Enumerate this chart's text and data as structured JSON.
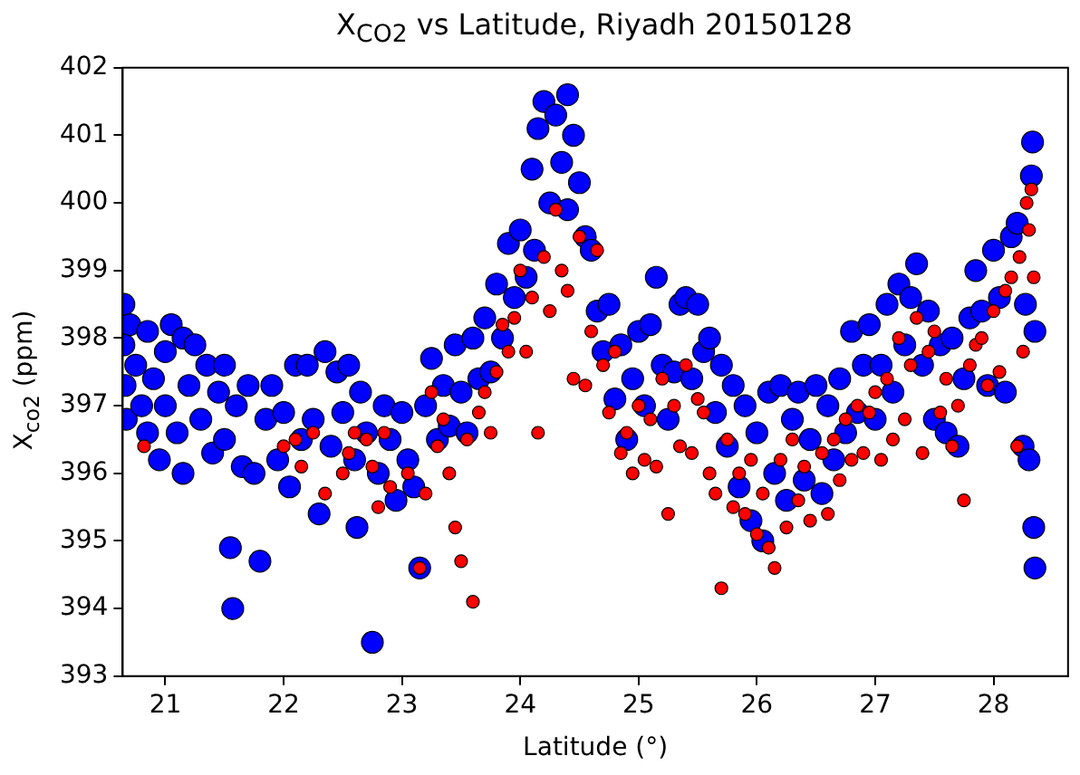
{
  "chart_data": {
    "type": "scatter",
    "title": "X$_{CO2}$ vs Latitude, Riyadh 20150128",
    "xlabel": "Latitude (°)",
    "ylabel": "X$_{co2}$ (ppm)",
    "xlim": [
      20.64,
      28.63
    ],
    "xticks": [
      21,
      22,
      23,
      24,
      25,
      26,
      27,
      28
    ],
    "ylim": [
      393,
      402
    ],
    "yticks": [
      393,
      394,
      395,
      396,
      397,
      398,
      399,
      400,
      401,
      402
    ],
    "marker": "circle",
    "legend": false,
    "series": [
      {
        "color": "#0000ff",
        "x": [
          20.65,
          20.65,
          20.66,
          20.67,
          20.7,
          20.75,
          20.8,
          20.85,
          20.85,
          20.9,
          20.95,
          21.0,
          21.0,
          21.05,
          21.1,
          21.15,
          21.15,
          21.2,
          21.25,
          21.3,
          21.35,
          21.4,
          21.45,
          21.5,
          21.5,
          21.55,
          21.57,
          21.6,
          21.65,
          21.7,
          21.75,
          21.8,
          21.85,
          21.9,
          21.95,
          22.0,
          22.05,
          22.1,
          22.15,
          22.2,
          22.25,
          22.3,
          22.35,
          22.4,
          22.45,
          22.5,
          22.55,
          22.6,
          22.62,
          22.65,
          22.7,
          22.75,
          22.8,
          22.85,
          22.9,
          22.95,
          23.0,
          23.05,
          23.1,
          23.15,
          23.2,
          23.25,
          23.3,
          23.35,
          23.4,
          23.45,
          23.5,
          23.55,
          23.6,
          23.65,
          23.7,
          23.75,
          23.8,
          23.85,
          23.9,
          23.95,
          24.0,
          24.05,
          24.1,
          24.12,
          24.15,
          24.2,
          24.25,
          24.3,
          24.35,
          24.4,
          24.4,
          24.45,
          24.5,
          24.55,
          24.6,
          24.65,
          24.7,
          24.75,
          24.8,
          24.85,
          24.9,
          24.95,
          25.0,
          25.05,
          25.1,
          25.15,
          25.2,
          25.25,
          25.3,
          25.35,
          25.4,
          25.45,
          25.5,
          25.55,
          25.6,
          25.65,
          25.7,
          25.75,
          25.8,
          25.85,
          25.9,
          25.95,
          26.0,
          26.05,
          26.1,
          26.15,
          26.2,
          26.25,
          26.3,
          26.35,
          26.4,
          26.45,
          26.5,
          26.55,
          26.6,
          26.65,
          26.7,
          26.75,
          26.8,
          26.85,
          26.9,
          26.95,
          27.0,
          27.05,
          27.1,
          27.15,
          27.2,
          27.25,
          27.3,
          27.35,
          27.4,
          27.45,
          27.5,
          27.55,
          27.6,
          27.65,
          27.7,
          27.75,
          27.8,
          27.85,
          27.9,
          27.95,
          28.0,
          28.05,
          28.1,
          28.15,
          28.2,
          28.25,
          28.27,
          28.3,
          28.32,
          28.33,
          28.34,
          28.35,
          28.35
        ],
        "values": [
          398.5,
          397.9,
          397.3,
          396.8,
          398.2,
          397.6,
          397.0,
          396.6,
          398.1,
          397.4,
          396.2,
          397.8,
          397.0,
          398.2,
          396.6,
          398.0,
          396.0,
          397.3,
          397.9,
          396.8,
          397.6,
          396.3,
          397.2,
          397.6,
          396.5,
          394.9,
          394.0,
          397.0,
          396.1,
          397.3,
          396.0,
          394.7,
          396.8,
          397.3,
          396.2,
          396.9,
          395.8,
          397.6,
          396.5,
          397.6,
          396.8,
          395.4,
          397.8,
          396.4,
          397.5,
          396.9,
          397.6,
          396.2,
          395.2,
          397.2,
          396.6,
          393.5,
          396.0,
          397.0,
          396.5,
          395.6,
          396.9,
          396.2,
          395.8,
          394.6,
          397.0,
          397.7,
          396.5,
          397.3,
          396.7,
          397.9,
          397.2,
          396.6,
          398.0,
          397.4,
          398.3,
          397.5,
          398.8,
          398.0,
          399.4,
          398.6,
          399.6,
          398.9,
          400.5,
          399.3,
          401.1,
          401.5,
          400.0,
          401.3,
          400.6,
          401.6,
          399.9,
          401.0,
          400.3,
          399.5,
          399.3,
          398.4,
          397.8,
          398.5,
          397.1,
          397.9,
          396.5,
          397.4,
          398.1,
          397.0,
          398.2,
          398.9,
          397.6,
          396.8,
          397.5,
          398.5,
          398.6,
          397.4,
          398.5,
          397.8,
          398.0,
          396.9,
          397.6,
          396.4,
          397.3,
          395.8,
          397.0,
          395.3,
          396.6,
          395.0,
          397.2,
          396.0,
          397.3,
          395.6,
          396.8,
          397.2,
          395.9,
          396.5,
          397.3,
          395.7,
          397.0,
          396.2,
          397.4,
          396.6,
          398.1,
          396.9,
          397.6,
          398.2,
          396.8,
          397.6,
          398.5,
          397.2,
          398.8,
          397.9,
          398.6,
          399.1,
          397.6,
          398.4,
          396.8,
          397.9,
          396.6,
          398.0,
          396.4,
          397.4,
          398.3,
          399.0,
          398.4,
          397.3,
          399.3,
          398.6,
          397.2,
          399.5,
          399.7,
          396.4,
          398.5,
          396.2,
          400.4,
          400.9,
          395.2,
          394.6,
          398.1
        ]
      },
      {
        "color": "#ff0000",
        "x": [
          20.82,
          22.0,
          22.1,
          22.15,
          22.25,
          22.35,
          22.5,
          22.55,
          22.6,
          22.7,
          22.75,
          22.8,
          22.85,
          22.9,
          23.05,
          23.15,
          23.2,
          23.25,
          23.3,
          23.35,
          23.4,
          23.45,
          23.5,
          23.55,
          23.6,
          23.65,
          23.7,
          23.75,
          23.8,
          23.85,
          23.9,
          23.95,
          24.0,
          24.05,
          24.1,
          24.15,
          24.2,
          24.25,
          24.3,
          24.35,
          24.4,
          24.45,
          24.5,
          24.55,
          24.6,
          24.65,
          24.7,
          24.75,
          24.8,
          24.85,
          24.9,
          24.95,
          25.0,
          25.05,
          25.1,
          25.15,
          25.2,
          25.25,
          25.3,
          25.35,
          25.4,
          25.45,
          25.5,
          25.55,
          25.6,
          25.65,
          25.7,
          25.75,
          25.8,
          25.85,
          25.9,
          25.95,
          26.0,
          26.05,
          26.1,
          26.15,
          26.2,
          26.25,
          26.3,
          26.35,
          26.4,
          26.45,
          26.55,
          26.6,
          26.65,
          26.7,
          26.75,
          26.8,
          26.85,
          26.9,
          26.95,
          27.0,
          27.05,
          27.1,
          27.15,
          27.2,
          27.25,
          27.3,
          27.35,
          27.4,
          27.45,
          27.5,
          27.55,
          27.6,
          27.65,
          27.7,
          27.75,
          27.8,
          27.85,
          27.9,
          27.95,
          28.0,
          28.05,
          28.1,
          28.15,
          28.2,
          28.22,
          28.25,
          28.28,
          28.3,
          28.32,
          28.34
        ],
        "values": [
          396.4,
          396.4,
          396.5,
          396.1,
          396.6,
          395.7,
          396.0,
          396.3,
          396.6,
          396.5,
          396.1,
          395.5,
          396.6,
          395.8,
          396.0,
          394.6,
          395.7,
          397.2,
          396.4,
          396.8,
          396.0,
          395.2,
          394.7,
          396.5,
          394.1,
          396.9,
          397.2,
          396.6,
          397.5,
          398.2,
          397.8,
          398.3,
          399.0,
          397.8,
          398.6,
          396.6,
          399.2,
          398.4,
          399.9,
          399.0,
          398.7,
          397.4,
          399.5,
          397.3,
          398.1,
          399.3,
          397.6,
          396.9,
          397.8,
          396.3,
          396.6,
          396.0,
          397.0,
          396.2,
          396.8,
          396.1,
          397.4,
          395.4,
          397.0,
          396.4,
          397.6,
          396.3,
          397.1,
          396.9,
          396.0,
          395.7,
          394.3,
          396.5,
          395.5,
          396.0,
          395.4,
          396.2,
          395.1,
          395.7,
          394.9,
          394.6,
          396.2,
          395.2,
          396.5,
          395.6,
          396.1,
          395.3,
          396.3,
          395.4,
          396.5,
          395.9,
          396.8,
          396.2,
          397.0,
          396.3,
          396.9,
          397.2,
          396.2,
          397.4,
          396.5,
          398.0,
          396.8,
          397.6,
          398.3,
          396.3,
          397.8,
          398.1,
          396.9,
          397.4,
          396.4,
          397.0,
          395.6,
          397.6,
          397.9,
          398.0,
          397.3,
          398.4,
          397.5,
          398.7,
          398.9,
          396.4,
          399.2,
          397.8,
          400.0,
          399.6,
          400.2,
          398.9
        ]
      }
    ]
  }
}
